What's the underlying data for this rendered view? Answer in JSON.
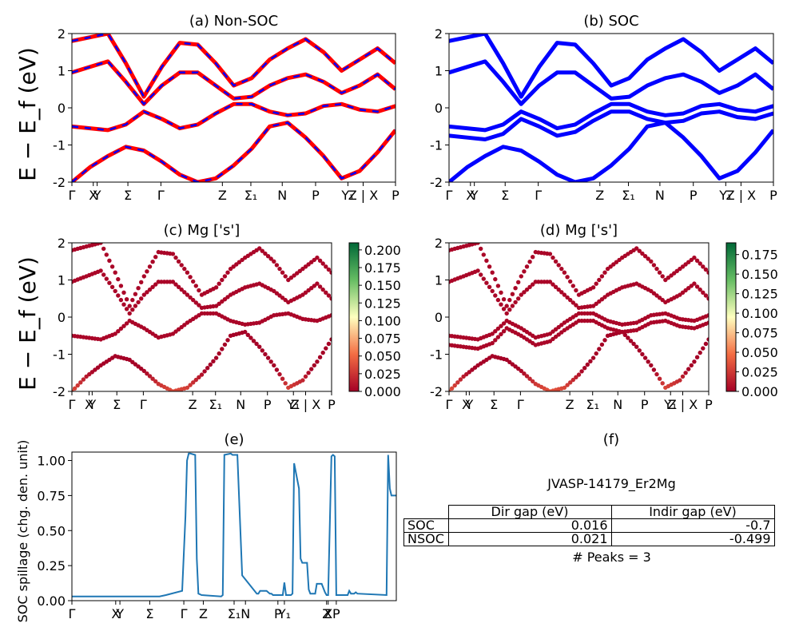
{
  "chart_data": [
    {
      "type": "line",
      "panel": "a",
      "title": "(a) Non-SOC",
      "ylabel": "E − E_f (eV)",
      "ylim": [
        -2,
        2
      ],
      "yticks": [
        -2,
        -1,
        0,
        1,
        2
      ],
      "xticks": [
        "Γ",
        "X",
        "Y",
        "Σ",
        "Γ",
        "Z",
        "Σ₁",
        "N",
        "P",
        "Y₁",
        "Z | X",
        "P"
      ],
      "colors": [
        "#ff0000",
        "#0000ff"
      ],
      "series": [
        {
          "values": [
            -2.0,
            -1.6,
            -1.3,
            -1.05,
            -1.15,
            -1.45,
            -1.8,
            -2.0,
            -1.9,
            -1.55,
            -1.1,
            -0.5,
            -0.4,
            -0.8,
            -1.3,
            -1.9,
            -1.7,
            -1.2,
            -0.6
          ]
        },
        {
          "values": [
            -0.5,
            -0.55,
            -0.6,
            -0.45,
            -0.1,
            -0.3,
            -0.55,
            -0.45,
            -0.15,
            0.1,
            0.1,
            -0.1,
            -0.2,
            -0.15,
            0.05,
            0.1,
            -0.05,
            -0.1,
            0.05
          ]
        },
        {
          "values": [
            0.95,
            1.1,
            1.25,
            0.7,
            0.1,
            0.6,
            0.95,
            0.95,
            0.6,
            0.25,
            0.3,
            0.6,
            0.8,
            0.9,
            0.7,
            0.4,
            0.6,
            0.9,
            0.5
          ]
        },
        {
          "values": [
            1.8,
            1.9,
            2.0,
            1.2,
            0.3,
            1.1,
            1.75,
            1.7,
            1.2,
            0.6,
            0.8,
            1.3,
            1.6,
            1.85,
            1.5,
            1.0,
            1.3,
            1.6,
            1.2
          ]
        }
      ]
    },
    {
      "type": "line",
      "panel": "b",
      "title": "(b) SOC",
      "ylim": [
        -2,
        2
      ],
      "yticks": [
        -2,
        -1,
        0,
        1,
        2
      ],
      "xticks": [
        "Γ",
        "X",
        "Y",
        "Σ",
        "Γ",
        "Z",
        "Σ₁",
        "N",
        "P",
        "Y₁",
        "Z | X",
        "P"
      ],
      "colors": [
        "#0000ff"
      ],
      "series": [
        {
          "values": [
            -2.0,
            -1.6,
            -1.3,
            -1.05,
            -1.15,
            -1.45,
            -1.8,
            -2.0,
            -1.9,
            -1.55,
            -1.1,
            -0.5,
            -0.4,
            -0.8,
            -1.3,
            -1.9,
            -1.7,
            -1.2,
            -0.6
          ]
        },
        {
          "values": [
            -0.5,
            -0.55,
            -0.6,
            -0.45,
            -0.1,
            -0.3,
            -0.55,
            -0.45,
            -0.15,
            0.1,
            0.1,
            -0.1,
            -0.2,
            -0.15,
            0.05,
            0.1,
            -0.05,
            -0.1,
            0.05
          ]
        },
        {
          "values": [
            -0.75,
            -0.8,
            -0.85,
            -0.7,
            -0.3,
            -0.5,
            -0.75,
            -0.65,
            -0.35,
            -0.1,
            -0.1,
            -0.3,
            -0.4,
            -0.35,
            -0.15,
            -0.1,
            -0.25,
            -0.3,
            -0.15
          ]
        },
        {
          "values": [
            0.95,
            1.1,
            1.25,
            0.7,
            0.1,
            0.6,
            0.95,
            0.95,
            0.6,
            0.25,
            0.3,
            0.6,
            0.8,
            0.9,
            0.7,
            0.4,
            0.6,
            0.9,
            0.5
          ]
        },
        {
          "values": [
            1.8,
            1.9,
            2.0,
            1.2,
            0.3,
            1.1,
            1.75,
            1.7,
            1.2,
            0.6,
            0.8,
            1.3,
            1.6,
            1.85,
            1.5,
            1.0,
            1.3,
            1.6,
            1.2
          ]
        }
      ]
    },
    {
      "type": "scatter",
      "panel": "c",
      "title": "(c)  Mg ['s']",
      "ylabel": "E − E_f (eV)",
      "ylim": [
        -2,
        2
      ],
      "yticks": [
        -2,
        -1,
        0,
        1,
        2
      ],
      "xticks": [
        "Γ",
        "X",
        "Y",
        "Σ",
        "Γ",
        "Z",
        "Σ₁",
        "N",
        "P",
        "Y₁",
        "Z | X",
        "P"
      ],
      "colorbar_ticks": [
        "0.000",
        "0.025",
        "0.050",
        "0.075",
        "0.100",
        "0.125",
        "0.150",
        "0.175",
        "0.200"
      ],
      "colorbar_range": [
        0,
        0.21
      ],
      "series": [
        {
          "values": [
            -2.0,
            -1.6,
            -1.3,
            -1.05,
            -1.15,
            -1.45,
            -1.8,
            -2.0,
            -1.9,
            -1.55,
            -1.1,
            -0.5,
            -0.4,
            -0.8,
            -1.3,
            -1.9,
            -1.7,
            -1.2,
            -0.6
          ]
        },
        {
          "values": [
            -0.5,
            -0.55,
            -0.6,
            -0.45,
            -0.1,
            -0.3,
            -0.55,
            -0.45,
            -0.15,
            0.1,
            0.1,
            -0.1,
            -0.2,
            -0.15,
            0.05,
            0.1,
            -0.05,
            -0.1,
            0.05
          ]
        },
        {
          "values": [
            0.95,
            1.1,
            1.25,
            0.7,
            0.1,
            0.6,
            0.95,
            0.95,
            0.6,
            0.25,
            0.3,
            0.6,
            0.8,
            0.9,
            0.7,
            0.4,
            0.6,
            0.9,
            0.5
          ]
        },
        {
          "values": [
            1.8,
            1.9,
            2.0,
            1.2,
            0.3,
            1.1,
            1.75,
            1.7,
            1.2,
            0.6,
            0.8,
            1.3,
            1.6,
            1.85,
            1.5,
            1.0,
            1.3,
            1.6,
            1.2
          ]
        }
      ]
    },
    {
      "type": "scatter",
      "panel": "d",
      "title": "(d) Mg ['s']",
      "ylim": [
        -2,
        2
      ],
      "yticks": [
        -2,
        -1,
        0,
        1,
        2
      ],
      "xticks": [
        "Γ",
        "X",
        "Y",
        "Σ",
        "Γ",
        "Z",
        "Σ₁",
        "N",
        "P",
        "Y₁",
        "Z | X",
        "P"
      ],
      "colorbar_ticks": [
        "0.000",
        "0.025",
        "0.050",
        "0.075",
        "0.100",
        "0.125",
        "0.150",
        "0.175"
      ],
      "colorbar_range": [
        0,
        0.19
      ],
      "series": [
        {
          "values": [
            -2.0,
            -1.6,
            -1.3,
            -1.05,
            -1.15,
            -1.45,
            -1.8,
            -2.0,
            -1.9,
            -1.55,
            -1.1,
            -0.5,
            -0.4,
            -0.8,
            -1.3,
            -1.9,
            -1.7,
            -1.2,
            -0.6
          ]
        },
        {
          "values": [
            -0.5,
            -0.55,
            -0.6,
            -0.45,
            -0.1,
            -0.3,
            -0.55,
            -0.45,
            -0.15,
            0.1,
            0.1,
            -0.1,
            -0.2,
            -0.15,
            0.05,
            0.1,
            -0.05,
            -0.1,
            0.05
          ]
        },
        {
          "values": [
            -0.75,
            -0.8,
            -0.85,
            -0.7,
            -0.3,
            -0.5,
            -0.75,
            -0.65,
            -0.35,
            -0.1,
            -0.1,
            -0.3,
            -0.4,
            -0.35,
            -0.15,
            -0.1,
            -0.25,
            -0.3,
            -0.15
          ]
        },
        {
          "values": [
            0.95,
            1.1,
            1.25,
            0.7,
            0.1,
            0.6,
            0.95,
            0.95,
            0.6,
            0.25,
            0.3,
            0.6,
            0.8,
            0.9,
            0.7,
            0.4,
            0.6,
            0.9,
            0.5
          ]
        },
        {
          "values": [
            1.8,
            1.9,
            2.0,
            1.2,
            0.3,
            1.1,
            1.75,
            1.7,
            1.2,
            0.6,
            0.8,
            1.3,
            1.6,
            1.85,
            1.5,
            1.0,
            1.3,
            1.6,
            1.2
          ]
        }
      ]
    },
    {
      "type": "line",
      "panel": "e",
      "title": "(e)",
      "ylabel": "SOC spillage (chg. den. unit)",
      "ylim": [
        0,
        1.06
      ],
      "yticks": [
        "0.00",
        "0.25",
        "0.50",
        "0.75",
        "1.00"
      ],
      "xticks": [
        "Γ",
        "X",
        "Y",
        "Σ",
        "Γ",
        "Z",
        "Σ₁",
        "N",
        "P",
        "Y₁",
        "Z",
        "X",
        "P"
      ],
      "colors": [
        "#1f77b4"
      ],
      "x": [
        0,
        0.27,
        0.29,
        0.34,
        0.35,
        0.355,
        0.36,
        0.365,
        0.38,
        0.385,
        0.39,
        0.4,
        0.46,
        0.465,
        0.47,
        0.49,
        0.495,
        0.5,
        0.51,
        0.525,
        0.57,
        0.575,
        0.58,
        0.6,
        0.61,
        0.615,
        0.62,
        0.65,
        0.655,
        0.66,
        0.675,
        0.68,
        0.685,
        0.7,
        0.705,
        0.71,
        0.72,
        0.725,
        0.73,
        0.735,
        0.75,
        0.755,
        0.76,
        0.77,
        0.78,
        0.785,
        0.79,
        0.8,
        0.805,
        0.81,
        0.815,
        0.85,
        0.855,
        0.86,
        0.87,
        0.875,
        0.88,
        0.97,
        0.975,
        0.98,
        0.985,
        1.0
      ],
      "series": [
        {
          "values": [
            0.03,
            0.03,
            0.04,
            0.07,
            0.6,
            1.0,
            1.05,
            1.05,
            1.04,
            0.3,
            0.05,
            0.04,
            0.03,
            0.04,
            1.04,
            1.05,
            1.04,
            1.04,
            1.04,
            0.18,
            0.05,
            0.05,
            0.07,
            0.07,
            0.05,
            0.05,
            0.04,
            0.04,
            0.13,
            0.04,
            0.04,
            0.05,
            0.98,
            0.8,
            0.3,
            0.27,
            0.27,
            0.27,
            0.08,
            0.05,
            0.05,
            0.12,
            0.12,
            0.12,
            0.06,
            0.04,
            0.04,
            1.03,
            1.04,
            1.03,
            0.04,
            0.04,
            0.07,
            0.05,
            0.05,
            0.06,
            0.05,
            0.04,
            1.04,
            0.8,
            0.75,
            0.75
          ]
        }
      ]
    },
    {
      "type": "table",
      "panel": "f",
      "title": "(f)",
      "material": "JVASP-14179_Er2Mg",
      "columns": [
        "",
        "Dir gap (eV)",
        "Indir gap (eV)"
      ],
      "rows": [
        [
          "SOC",
          "0.016",
          "-0.7"
        ],
        [
          "NSOC",
          "0.021",
          "-0.499"
        ]
      ],
      "footer": "# Peaks = 3"
    }
  ]
}
